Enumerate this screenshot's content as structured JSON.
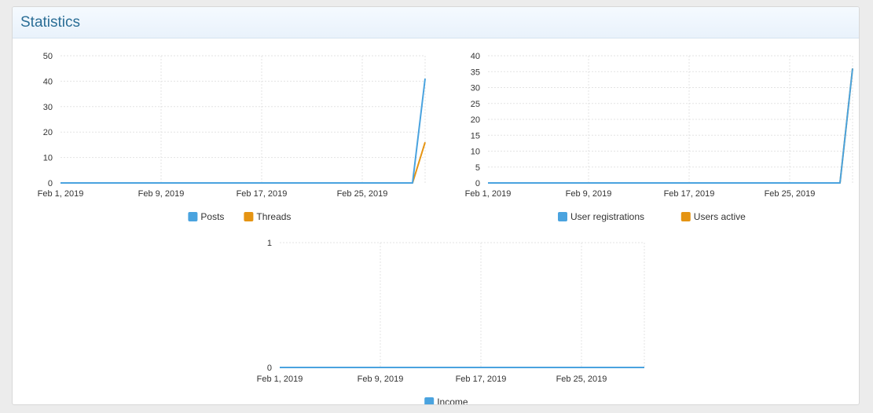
{
  "page": {
    "title": "Statistics"
  },
  "colors": {
    "series_blue": "#4aa3df",
    "series_orange": "#e59413",
    "grid": "#e3e3e3"
  },
  "chart_data": [
    {
      "type": "line",
      "id": "posts-threads",
      "x_tick_labels": [
        "Feb 1, 2019",
        "Feb 9, 2019",
        "Feb 17, 2019",
        "Feb 25, 2019"
      ],
      "x_day_range": [
        1,
        30
      ],
      "x_tick_days": [
        1,
        9,
        17,
        25
      ],
      "ylim": [
        0,
        50
      ],
      "y_ticks": [
        0,
        10,
        20,
        30,
        40,
        50
      ],
      "series": [
        {
          "name": "Posts",
          "color": "#4aa3df",
          "points": [
            [
              1,
              0
            ],
            [
              29,
              0
            ],
            [
              30,
              41
            ]
          ]
        },
        {
          "name": "Threads",
          "color": "#e59413",
          "points": [
            [
              1,
              0
            ],
            [
              29,
              0
            ],
            [
              30,
              16
            ]
          ]
        }
      ],
      "legend": [
        "Posts",
        "Threads"
      ]
    },
    {
      "type": "line",
      "id": "users",
      "x_tick_labels": [
        "Feb 1, 2019",
        "Feb 9, 2019",
        "Feb 17, 2019",
        "Feb 25, 2019"
      ],
      "x_day_range": [
        1,
        30
      ],
      "x_tick_days": [
        1,
        9,
        17,
        25
      ],
      "ylim": [
        0,
        40
      ],
      "y_ticks": [
        0,
        5,
        10,
        15,
        20,
        25,
        30,
        35,
        40
      ],
      "series": [
        {
          "name": "User registrations",
          "color": "#4aa3df",
          "points": [
            [
              1,
              0
            ],
            [
              29,
              0
            ],
            [
              30,
              36
            ]
          ]
        },
        {
          "name": "Users active",
          "color": "#e59413",
          "points": [
            [
              1,
              0
            ],
            [
              29,
              0
            ],
            [
              30,
              36
            ]
          ]
        }
      ],
      "legend": [
        "User registrations",
        "Users active"
      ]
    },
    {
      "type": "line",
      "id": "income",
      "x_tick_labels": [
        "Feb 1, 2019",
        "Feb 9, 2019",
        "Feb 17, 2019",
        "Feb 25, 2019"
      ],
      "x_day_range": [
        1,
        30
      ],
      "x_tick_days": [
        1,
        9,
        17,
        25
      ],
      "ylim": [
        0,
        1
      ],
      "y_ticks": [
        0,
        1
      ],
      "series": [
        {
          "name": "Income",
          "color": "#4aa3df",
          "points": [
            [
              1,
              0
            ],
            [
              30,
              0
            ]
          ]
        }
      ],
      "legend": [
        "Income"
      ]
    }
  ]
}
